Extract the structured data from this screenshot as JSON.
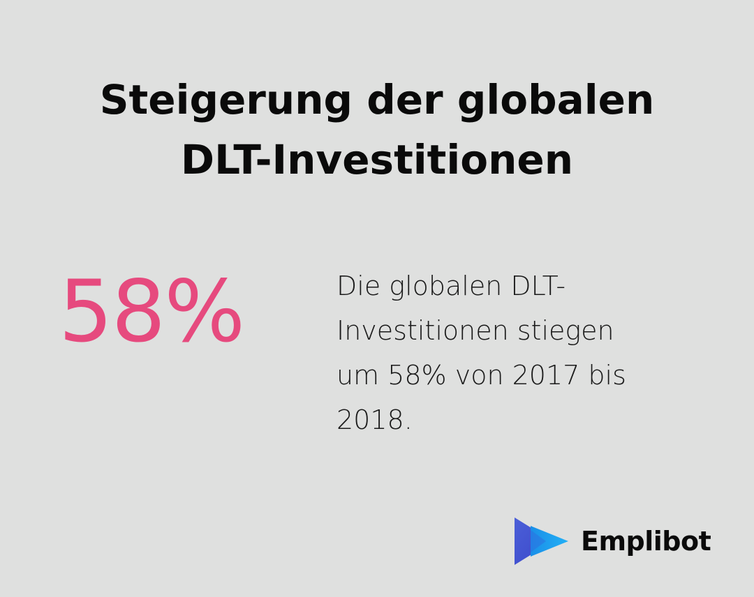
{
  "title": {
    "line1": "Steigerung der globalen",
    "line2": "DLT-Investitionen"
  },
  "stat": {
    "value": "58%",
    "color": "#e64a7e"
  },
  "description": {
    "line1": "Die globalen DLT-",
    "line2": "Investitionen stiegen",
    "line3": "um 58% von 2017 bis",
    "line4": "2018."
  },
  "brand": {
    "name": "Emplibot",
    "logo_icon": "play-arrows-logo-icon",
    "logo_colors": [
      "#4a5bd6",
      "#1ea0f0"
    ]
  },
  "background_color": "#dfe0df"
}
